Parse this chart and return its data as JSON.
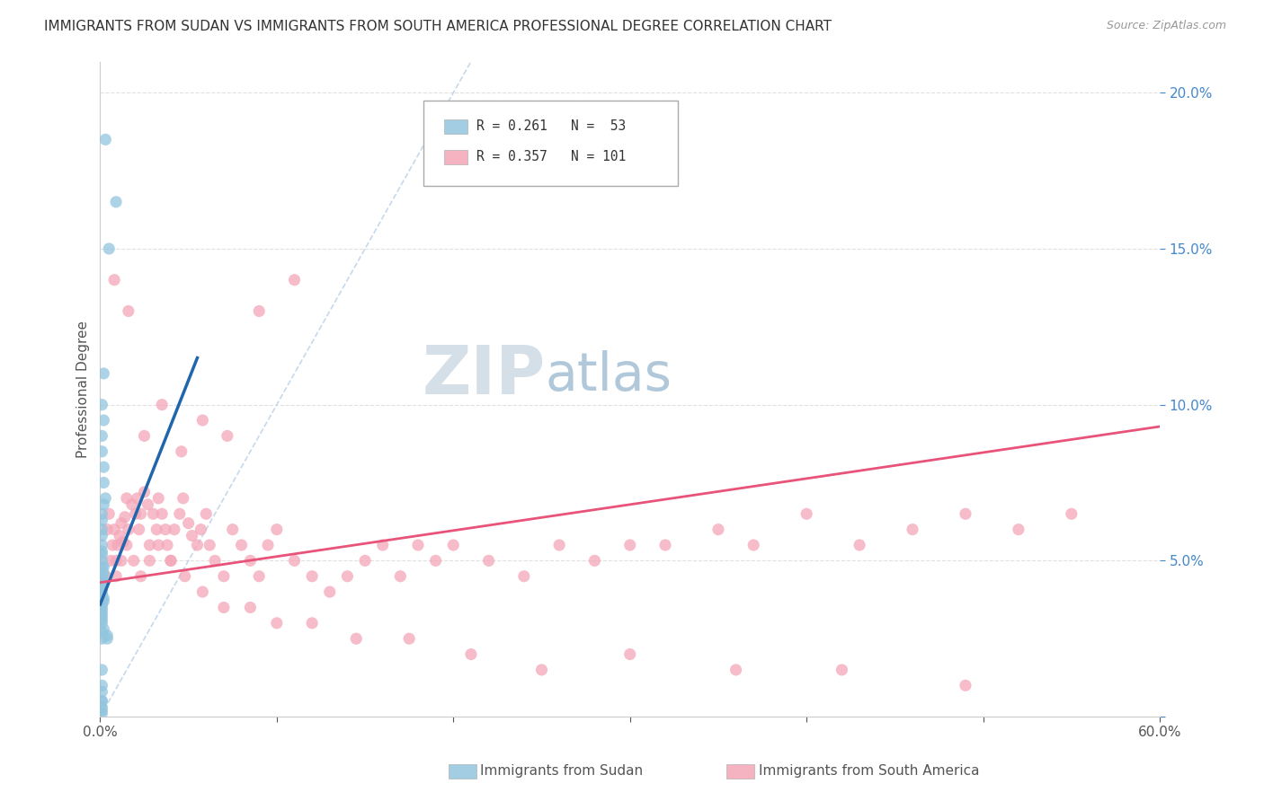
{
  "title": "IMMIGRANTS FROM SUDAN VS IMMIGRANTS FROM SOUTH AMERICA PROFESSIONAL DEGREE CORRELATION CHART",
  "source": "Source: ZipAtlas.com",
  "ylabel": "Professional Degree",
  "xlim": [
    0.0,
    0.6
  ],
  "ylim": [
    0.0,
    0.21
  ],
  "series1_color": "#92c5de",
  "series2_color": "#f4a6b8",
  "line1_color": "#2166ac",
  "line2_color": "#e8537a",
  "diag_color": "#b8cfe8",
  "watermark_color_zip": "#d0dce8",
  "watermark_color_atlas": "#a8c4d8",
  "sudan_x": [
    0.003,
    0.009,
    0.005,
    0.002,
    0.001,
    0.002,
    0.001,
    0.001,
    0.002,
    0.002,
    0.003,
    0.002,
    0.001,
    0.001,
    0.001,
    0.001,
    0.001,
    0.001,
    0.001,
    0.001,
    0.001,
    0.002,
    0.002,
    0.001,
    0.001,
    0.002,
    0.001,
    0.001,
    0.001,
    0.001,
    0.002,
    0.002,
    0.001,
    0.001,
    0.001,
    0.001,
    0.001,
    0.001,
    0.001,
    0.001,
    0.002,
    0.001,
    0.004,
    0.004,
    0.001,
    0.001,
    0.001,
    0.001,
    0.001,
    0.001,
    0.001,
    0.001,
    0.001
  ],
  "sudan_y": [
    0.185,
    0.165,
    0.15,
    0.11,
    0.1,
    0.095,
    0.09,
    0.085,
    0.08,
    0.075,
    0.07,
    0.068,
    0.065,
    0.063,
    0.06,
    0.058,
    0.055,
    0.053,
    0.052,
    0.05,
    0.048,
    0.048,
    0.046,
    0.045,
    0.044,
    0.043,
    0.042,
    0.041,
    0.04,
    0.039,
    0.038,
    0.037,
    0.037,
    0.036,
    0.035,
    0.034,
    0.033,
    0.032,
    0.031,
    0.03,
    0.028,
    0.027,
    0.026,
    0.025,
    0.025,
    0.015,
    0.01,
    0.008,
    0.005,
    0.005,
    0.003,
    0.002,
    0.001
  ],
  "sa_x": [
    0.004,
    0.005,
    0.007,
    0.008,
    0.009,
    0.01,
    0.011,
    0.012,
    0.013,
    0.014,
    0.015,
    0.016,
    0.018,
    0.02,
    0.021,
    0.022,
    0.023,
    0.025,
    0.027,
    0.028,
    0.03,
    0.032,
    0.033,
    0.035,
    0.037,
    0.038,
    0.04,
    0.042,
    0.045,
    0.047,
    0.05,
    0.052,
    0.055,
    0.057,
    0.06,
    0.062,
    0.065,
    0.07,
    0.075,
    0.08,
    0.085,
    0.09,
    0.095,
    0.1,
    0.11,
    0.12,
    0.13,
    0.14,
    0.15,
    0.16,
    0.17,
    0.18,
    0.19,
    0.2,
    0.22,
    0.24,
    0.26,
    0.28,
    0.3,
    0.32,
    0.35,
    0.37,
    0.4,
    0.43,
    0.46,
    0.49,
    0.52,
    0.55,
    0.003,
    0.006,
    0.009,
    0.012,
    0.015,
    0.019,
    0.023,
    0.028,
    0.033,
    0.04,
    0.048,
    0.058,
    0.07,
    0.085,
    0.1,
    0.12,
    0.145,
    0.175,
    0.21,
    0.25,
    0.3,
    0.36,
    0.42,
    0.49,
    0.008,
    0.016,
    0.025,
    0.035,
    0.046,
    0.058,
    0.072,
    0.09,
    0.11
  ],
  "sa_y": [
    0.06,
    0.065,
    0.055,
    0.06,
    0.05,
    0.055,
    0.058,
    0.062,
    0.056,
    0.064,
    0.07,
    0.06,
    0.068,
    0.065,
    0.07,
    0.06,
    0.065,
    0.072,
    0.068,
    0.055,
    0.065,
    0.06,
    0.07,
    0.065,
    0.06,
    0.055,
    0.05,
    0.06,
    0.065,
    0.07,
    0.062,
    0.058,
    0.055,
    0.06,
    0.065,
    0.055,
    0.05,
    0.045,
    0.06,
    0.055,
    0.05,
    0.045,
    0.055,
    0.06,
    0.05,
    0.045,
    0.04,
    0.045,
    0.05,
    0.055,
    0.045,
    0.055,
    0.05,
    0.055,
    0.05,
    0.045,
    0.055,
    0.05,
    0.055,
    0.055,
    0.06,
    0.055,
    0.065,
    0.055,
    0.06,
    0.065,
    0.06,
    0.065,
    0.045,
    0.05,
    0.045,
    0.05,
    0.055,
    0.05,
    0.045,
    0.05,
    0.055,
    0.05,
    0.045,
    0.04,
    0.035,
    0.035,
    0.03,
    0.03,
    0.025,
    0.025,
    0.02,
    0.015,
    0.02,
    0.015,
    0.015,
    0.01,
    0.14,
    0.13,
    0.09,
    0.1,
    0.085,
    0.095,
    0.09,
    0.13,
    0.14
  ],
  "sudan_line_x0": 0.0,
  "sudan_line_x1": 0.055,
  "sudan_line_y0": 0.036,
  "sudan_line_y1": 0.115,
  "sa_line_x0": 0.0,
  "sa_line_x1": 0.6,
  "sa_line_y0": 0.043,
  "sa_line_y1": 0.093
}
